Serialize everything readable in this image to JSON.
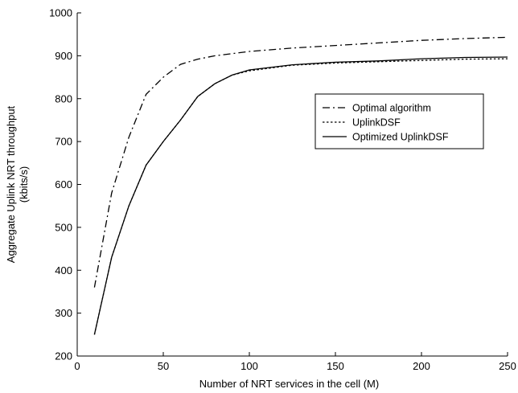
{
  "chart_data": {
    "type": "line",
    "title": "",
    "xlabel": "Number of NRT services in the cell (M)",
    "ylabel_lines": [
      "Aggregate Uplink NRT throughput",
      "(kbits/s)"
    ],
    "xlim": [
      0,
      250
    ],
    "ylim": [
      200,
      1000
    ],
    "xticks": [
      0,
      50,
      100,
      150,
      200,
      250
    ],
    "yticks": [
      200,
      300,
      400,
      500,
      600,
      700,
      800,
      900,
      1000
    ],
    "grid": false,
    "legend_position": "right-middle",
    "series": [
      {
        "name": "Optimal algorithm",
        "style": "dashdot",
        "x": [
          10,
          20,
          30,
          40,
          50,
          60,
          70,
          80,
          100,
          125,
          150,
          175,
          200,
          225,
          250
        ],
        "y": [
          360,
          580,
          710,
          810,
          850,
          880,
          892,
          900,
          910,
          918,
          924,
          930,
          936,
          940,
          943
        ]
      },
      {
        "name": "UplinkDSF",
        "style": "dotted",
        "x": [
          10,
          20,
          30,
          40,
          50,
          60,
          70,
          80,
          90,
          100,
          125,
          150,
          175,
          200,
          225,
          250
        ],
        "y": [
          250,
          430,
          550,
          645,
          700,
          750,
          805,
          835,
          855,
          865,
          878,
          883,
          886,
          889,
          892,
          893
        ]
      },
      {
        "name": "Optimized UplinkDSF",
        "style": "solid",
        "x": [
          10,
          20,
          30,
          40,
          50,
          60,
          70,
          80,
          90,
          100,
          125,
          150,
          175,
          200,
          225,
          250
        ],
        "y": [
          250,
          430,
          550,
          645,
          700,
          750,
          805,
          835,
          855,
          867,
          879,
          885,
          888,
          893,
          896,
          897
        ]
      }
    ]
  }
}
